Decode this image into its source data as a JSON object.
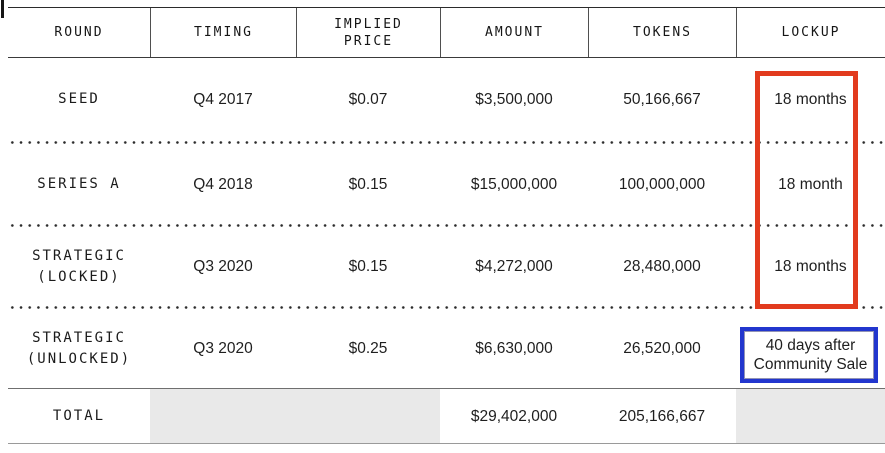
{
  "table": {
    "columns": [
      {
        "label": "ROUND"
      },
      {
        "label": "TIMING"
      },
      {
        "label": "IMPLIED PRICE"
      },
      {
        "label": "AMOUNT"
      },
      {
        "label": "TOKENS"
      },
      {
        "label": "LOCKUP"
      }
    ],
    "rows": [
      {
        "round": "SEED",
        "timing": "Q4 2017",
        "implied_price": "$0.07",
        "amount": "$3,500,000",
        "tokens": "50,166,667",
        "lockup": "18 months"
      },
      {
        "round": "SERIES A",
        "timing": "Q4 2018",
        "implied_price": "$0.15",
        "amount": "$15,000,000",
        "tokens": "100,000,000",
        "lockup": "18 month"
      },
      {
        "round": "STRATEGIC\n(LOCKED)",
        "timing": "Q3 2020",
        "implied_price": "$0.15",
        "amount": "$4,272,000",
        "tokens": "28,480,000",
        "lockup": "18 months"
      },
      {
        "round": "STRATEGIC\n(UNLOCKED)",
        "timing": "Q3 2020",
        "implied_price": "$0.25",
        "amount": "$6,630,000",
        "tokens": "26,520,000",
        "lockup": "40 days after Community Sale"
      }
    ],
    "total": {
      "label": "TOTAL",
      "amount": "$29,402,000",
      "tokens": "205,166,667"
    }
  },
  "annotations": {
    "red_box_color": "#e23b1e",
    "blue_box_color": "#2236ce",
    "total_row_shade": "#e9e9e9"
  }
}
